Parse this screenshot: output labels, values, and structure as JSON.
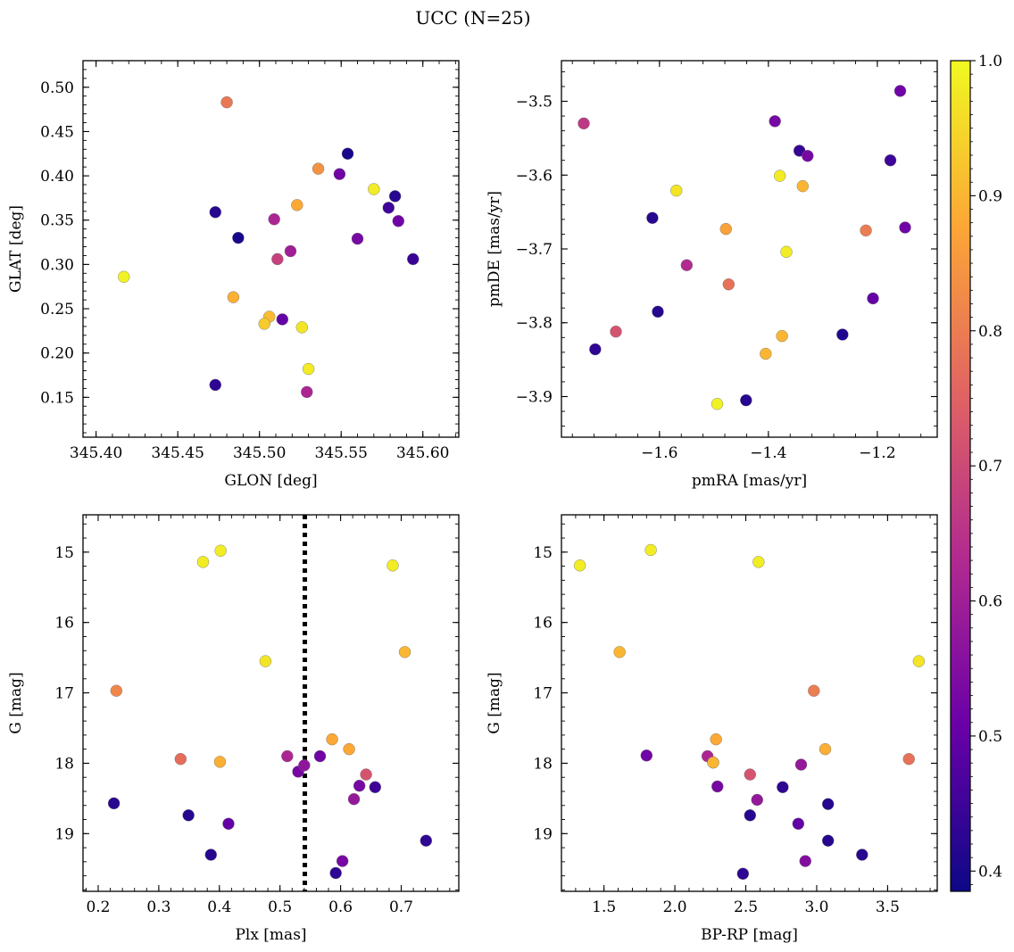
{
  "figure": {
    "title": "UCC (N=25)"
  },
  "colorbar": {
    "min": 0.385,
    "max": 1.0,
    "ticks": [
      0.4,
      0.5,
      0.6,
      0.7,
      0.8,
      0.9,
      1.0
    ],
    "tick_labels": [
      "0.4",
      "0.5",
      "0.6",
      "0.7",
      "0.8",
      "0.9",
      "1.0"
    ],
    "colormap": "plasma",
    "stops": [
      "#0d0887",
      "#6a00a8",
      "#b12a90",
      "#e16462",
      "#fca636",
      "#f0f921"
    ]
  },
  "chart_data": [
    {
      "type": "scatter",
      "xlabel": "GLON [deg]",
      "ylabel": "GLAT [deg]",
      "xlim": [
        345.392,
        345.622
      ],
      "ylim": [
        0.105,
        0.53
      ],
      "xticks": [
        345.4,
        345.45,
        345.5,
        345.55,
        345.6
      ],
      "xtick_labels": [
        "345.40",
        "345.45",
        "345.50",
        "345.55",
        "345.60"
      ],
      "yticks": [
        0.15,
        0.2,
        0.25,
        0.3,
        0.35,
        0.4,
        0.45,
        0.5
      ],
      "ytick_labels": [
        "0.15",
        "0.20",
        "0.25",
        "0.30",
        "0.35",
        "0.40",
        "0.45",
        "0.50"
      ],
      "x": [
        345.554,
        345.549,
        345.583,
        345.579,
        345.585,
        345.594,
        345.56,
        345.519,
        345.511,
        345.509,
        345.514,
        345.487,
        345.473,
        345.473,
        345.48,
        345.536,
        345.523,
        345.57,
        345.417,
        345.484,
        345.506,
        345.503,
        345.526,
        345.53,
        345.529
      ],
      "y": [
        0.425,
        0.402,
        0.377,
        0.364,
        0.349,
        0.306,
        0.329,
        0.315,
        0.306,
        0.351,
        0.238,
        0.33,
        0.359,
        0.164,
        0.483,
        0.408,
        0.367,
        0.385,
        0.286,
        0.263,
        0.241,
        0.233,
        0.229,
        0.182,
        0.156
      ],
      "c": [
        0.4,
        0.52,
        0.42,
        0.45,
        0.52,
        0.44,
        0.53,
        0.6,
        0.68,
        0.62,
        0.5,
        0.4,
        0.42,
        0.43,
        0.79,
        0.84,
        0.88,
        0.98,
        0.99,
        0.89,
        0.91,
        0.93,
        0.97,
        0.98,
        0.62
      ]
    },
    {
      "type": "scatter",
      "xlabel": "pmRA [mas/yr]",
      "ylabel": "pmDE [mas/yr]",
      "xlim": [
        -1.78,
        -1.09
      ],
      "ylim": [
        -3.955,
        -3.445
      ],
      "xticks": [
        -1.6,
        -1.4,
        -1.2
      ],
      "xtick_labels": [
        "−1.6",
        "−1.4",
        "−1.2"
      ],
      "yticks": [
        -3.9,
        -3.8,
        -3.7,
        -3.6,
        -3.5
      ],
      "ytick_labels": [
        "−3.9",
        "−3.8",
        "−3.7",
        "−3.6",
        "−3.5"
      ],
      "x": [
        -1.158,
        -1.388,
        -1.343,
        -1.328,
        -1.176,
        -1.149,
        -1.613,
        -1.603,
        -1.718,
        -1.441,
        -1.264,
        -1.208,
        -1.739,
        -1.55,
        -1.473,
        -1.68,
        -1.221,
        -1.478,
        -1.337,
        -1.375,
        -1.405,
        -1.569,
        -1.379,
        -1.367,
        -1.494
      ],
      "y": [
        -3.486,
        -3.527,
        -3.567,
        -3.574,
        -3.58,
        -3.671,
        -3.658,
        -3.785,
        -3.836,
        -3.905,
        -3.816,
        -3.767,
        -3.53,
        -3.722,
        -3.748,
        -3.812,
        -3.675,
        -3.673,
        -3.615,
        -3.818,
        -3.842,
        -3.621,
        -3.601,
        -3.704,
        -3.91
      ],
      "c": [
        0.52,
        0.53,
        0.44,
        0.53,
        0.45,
        0.52,
        0.42,
        0.42,
        0.43,
        0.42,
        0.41,
        0.5,
        0.66,
        0.63,
        0.78,
        0.72,
        0.8,
        0.87,
        0.9,
        0.9,
        0.9,
        0.97,
        0.98,
        0.98,
        0.99
      ]
    },
    {
      "type": "scatter",
      "xlabel": "Plx [mas]",
      "ylabel": "G [mag]",
      "xlim": [
        0.175,
        0.795
      ],
      "ylim": [
        19.82,
        14.47
      ],
      "y_inverted": true,
      "vline": 0.541,
      "xticks": [
        0.2,
        0.3,
        0.4,
        0.5,
        0.6,
        0.7
      ],
      "xtick_labels": [
        "0.2",
        "0.3",
        "0.4",
        "0.5",
        "0.6",
        "0.7"
      ],
      "yticks": [
        15,
        16,
        17,
        18,
        19
      ],
      "ytick_labels": [
        "15",
        "16",
        "17",
        "18",
        "19"
      ],
      "x": [
        0.402,
        0.373,
        0.686,
        0.476,
        0.706,
        0.23,
        0.336,
        0.401,
        0.586,
        0.614,
        0.512,
        0.566,
        0.54,
        0.53,
        0.642,
        0.631,
        0.657,
        0.622,
        0.226,
        0.349,
        0.415,
        0.386,
        0.603,
        0.592,
        0.741
      ],
      "y": [
        14.98,
        15.14,
        15.19,
        16.55,
        16.42,
        16.97,
        17.94,
        17.98,
        17.66,
        17.8,
        17.9,
        17.9,
        18.03,
        18.12,
        18.16,
        18.32,
        18.34,
        18.51,
        18.57,
        18.74,
        18.86,
        19.3,
        19.39,
        19.56,
        19.1
      ],
      "c": [
        0.98,
        0.98,
        0.98,
        0.97,
        0.9,
        0.82,
        0.77,
        0.89,
        0.88,
        0.88,
        0.62,
        0.52,
        0.57,
        0.53,
        0.72,
        0.53,
        0.45,
        0.58,
        0.42,
        0.42,
        0.5,
        0.42,
        0.53,
        0.43,
        0.43
      ]
    },
    {
      "type": "scatter",
      "xlabel": "BP-RP [mag]",
      "ylabel": "G [mag]",
      "xlim": [
        1.2,
        3.85
      ],
      "ylim": [
        19.82,
        14.47
      ],
      "y_inverted": true,
      "xticks": [
        1.5,
        2.0,
        2.5,
        3.0,
        3.5
      ],
      "xtick_labels": [
        "1.5",
        "2.0",
        "2.5",
        "3.0",
        "3.5"
      ],
      "yticks": [
        15,
        16,
        17,
        18,
        19
      ],
      "ytick_labels": [
        "15",
        "16",
        "17",
        "18",
        "19"
      ],
      "x": [
        1.33,
        1.83,
        2.59,
        1.61,
        3.72,
        2.98,
        2.29,
        3.65,
        2.27,
        1.8,
        2.23,
        2.53,
        2.89,
        2.3,
        2.58,
        2.76,
        3.08,
        2.53,
        2.87,
        3.08,
        2.92,
        3.32,
        2.48,
        3.06,
        2.27
      ],
      "y": [
        15.19,
        14.97,
        15.14,
        16.42,
        16.55,
        16.97,
        17.66,
        17.94,
        17.99,
        17.89,
        17.9,
        18.16,
        18.02,
        18.33,
        18.52,
        18.34,
        18.58,
        18.74,
        18.86,
        19.1,
        19.39,
        19.3,
        19.57,
        17.8,
        17.99
      ],
      "c": [
        0.98,
        0.98,
        0.98,
        0.9,
        0.97,
        0.8,
        0.88,
        0.78,
        0.89,
        0.52,
        0.62,
        0.72,
        0.58,
        0.53,
        0.58,
        0.43,
        0.42,
        0.42,
        0.5,
        0.42,
        0.55,
        0.42,
        0.43,
        0.89,
        0.9
      ]
    }
  ]
}
